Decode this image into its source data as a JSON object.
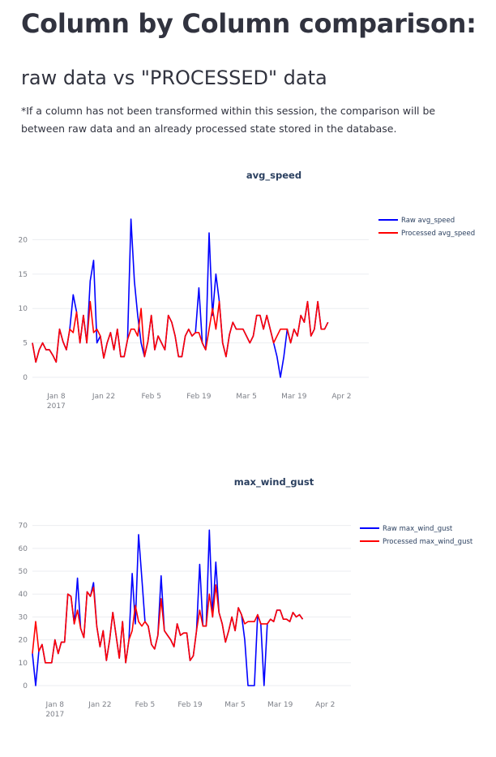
{
  "header": {
    "title": "Column by Column comparison:",
    "subtitle": "raw data vs \"PROCESSED\" data",
    "note": "*If a column has not been transformed within this session, the comparison will be between raw data and an already processed state stored in the database."
  },
  "colors": {
    "raw": "#0000ff",
    "processed": "#ff0000",
    "overlap": "#c8102e",
    "grid": "#ebedf0",
    "tick": "#7c7f87"
  },
  "x_ticks": [
    "Jan 8",
    "Jan 22",
    "Feb 5",
    "Feb 19",
    "Mar 5",
    "Mar 19",
    "Apr 2"
  ],
  "x_tick_year": "2017",
  "chart_data": [
    {
      "type": "line",
      "title": "avg_speed",
      "x_start": "2017-01-01",
      "x_end": "2017-04-10",
      "ylim": [
        0,
        23
      ],
      "y_ticks": [
        0,
        5,
        10,
        15,
        20
      ],
      "legend_position": "top-right",
      "series": [
        {
          "name": "Raw avg_speed",
          "values": [
            5,
            2.2,
            4,
            5,
            4,
            4,
            3.2,
            2.2,
            7,
            5.2,
            4,
            7,
            12,
            9.5,
            5,
            9,
            5,
            14,
            17,
            5,
            6,
            2.8,
            5,
            6.5,
            4,
            7,
            3,
            3,
            5.5,
            23,
            14,
            9,
            5,
            3,
            5.2,
            9,
            4,
            6,
            5,
            4,
            9,
            8,
            6,
            3,
            3,
            6,
            7,
            6,
            6.5,
            13,
            5,
            4,
            21,
            9,
            15,
            11,
            5,
            3,
            6.2,
            8,
            7,
            7,
            7,
            6,
            5,
            6,
            9,
            9,
            7,
            9,
            7,
            5,
            3,
            0,
            3,
            7,
            5,
            7,
            6,
            9,
            8,
            11,
            6,
            7,
            11,
            7,
            7,
            8
          ]
        },
        {
          "name": "Processed avg_speed",
          "values": [
            5,
            2.2,
            4,
            5,
            4,
            4,
            3.2,
            2.2,
            7,
            5.2,
            4,
            7,
            6.5,
            9.5,
            5,
            9,
            5,
            11,
            6.5,
            7,
            6,
            2.8,
            5,
            6.5,
            4,
            7,
            3,
            3,
            5.5,
            7,
            7,
            6,
            10,
            3,
            5.2,
            9,
            4,
            6,
            5,
            4,
            9,
            8,
            6,
            3,
            3,
            6,
            7,
            6,
            6.5,
            6.5,
            5,
            4,
            7,
            10,
            7,
            11,
            5,
            3,
            6.2,
            8,
            7,
            7,
            7,
            6,
            5,
            6,
            9,
            9,
            7,
            9,
            7,
            5,
            6,
            7,
            7,
            7,
            5,
            7,
            6,
            9,
            8,
            11,
            6,
            7,
            11,
            7,
            7,
            8
          ]
        }
      ]
    },
    {
      "type": "line",
      "title": "max_wind_gust",
      "x_start": "2017-01-01",
      "x_end": "2017-04-10",
      "ylim": [
        0,
        72
      ],
      "y_ticks": [
        0,
        10,
        20,
        30,
        40,
        50,
        60,
        70
      ],
      "legend_position": "top-right",
      "series": [
        {
          "name": "Raw max_wind_gust",
          "values": [
            14,
            0,
            15,
            18,
            10,
            10,
            10,
            20,
            14,
            19,
            19,
            40,
            39,
            27,
            47,
            25,
            21,
            41,
            39,
            45,
            26,
            17,
            24,
            11,
            20,
            32,
            22,
            12,
            28,
            10,
            20,
            49,
            27,
            66,
            47,
            28,
            26,
            18,
            16,
            22,
            48,
            24,
            22,
            20,
            17,
            27,
            22,
            23,
            23,
            11,
            13,
            24,
            53,
            26,
            26,
            68,
            30,
            54,
            32,
            27,
            19,
            24,
            30,
            24,
            34,
            31,
            20,
            0,
            0,
            0,
            31,
            27,
            0,
            27,
            29,
            28,
            33,
            33,
            29,
            29,
            28,
            32,
            30,
            31,
            29
          ]
        },
        {
          "name": "Processed max_wind_gust",
          "values": [
            14,
            28,
            15,
            18,
            10,
            10,
            10,
            20,
            14,
            19,
            19,
            40,
            39,
            27,
            33,
            25,
            21,
            41,
            39,
            43,
            26,
            17,
            24,
            11,
            20,
            32,
            22,
            12,
            28,
            10,
            20,
            24,
            35,
            28,
            26,
            28,
            26,
            18,
            16,
            22,
            38,
            24,
            22,
            20,
            17,
            27,
            22,
            23,
            23,
            11,
            13,
            24,
            33,
            26,
            26,
            40,
            30,
            44,
            32,
            27,
            19,
            24,
            30,
            24,
            34,
            31,
            27,
            28,
            28,
            28,
            31,
            27,
            27,
            27,
            29,
            28,
            33,
            33,
            29,
            29,
            28,
            32,
            30,
            31,
            29
          ]
        }
      ]
    }
  ]
}
